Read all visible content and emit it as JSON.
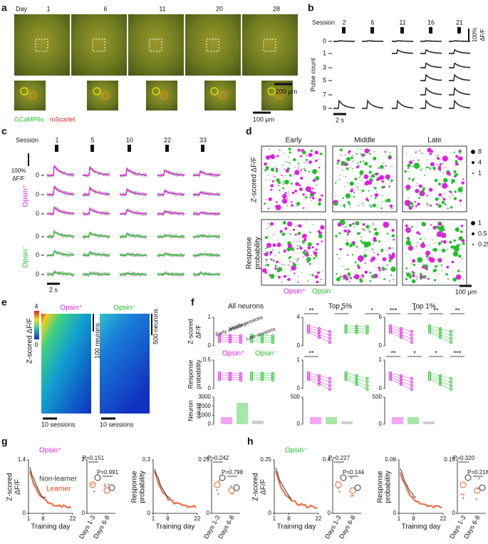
{
  "a": {
    "label": "a",
    "day_label": "Day",
    "days": [
      "1",
      "6",
      "11",
      "20",
      "28"
    ],
    "scale_large": "200 μm",
    "scale_small": "100 μm",
    "legend": [
      "GCaMP6s",
      "mScarlet"
    ]
  },
  "b": {
    "label": "b",
    "session_label": "Session",
    "sessions": [
      "2",
      "6",
      "11",
      "16",
      "21"
    ],
    "y_label": "Pulse count",
    "pulse_counts": [
      "0",
      "1",
      "3",
      "5",
      "7",
      "9"
    ],
    "scale_pct": "100%",
    "scale_unit": "ΔF/F",
    "time_scale": "2 s"
  },
  "c": {
    "label": "c",
    "session_label": "Session",
    "sessions": [
      "1",
      "5",
      "10",
      "22",
      "33"
    ],
    "scale_pct": "100%",
    "scale_unit": "ΔF/F",
    "row_ticks": [
      "0",
      "0",
      "0",
      "0",
      "0",
      "0"
    ],
    "group_labels": [
      "Opsin⁺",
      "Opsin⁻"
    ],
    "time_scale": "2 s"
  },
  "d": {
    "label": "d",
    "columns": [
      "Early",
      "Middle",
      "Late"
    ],
    "row_labels": [
      [
        "Z-scored ΔF/F"
      ],
      [
        "Response",
        "probability"
      ]
    ],
    "size_legends": [
      [
        "8",
        "4",
        "1"
      ],
      [
        "1",
        "0.5",
        "0.25"
      ]
    ],
    "legend": [
      "Opsin⁺",
      "Opsin⁻"
    ],
    "scale": "100 μm"
  },
  "e": {
    "label": "e",
    "colorbar_label": "Z-scored ΔF/F",
    "colorbar_ticks": [
      "4",
      "0"
    ],
    "titles": [
      "Opsin⁺",
      "Opsin⁻"
    ],
    "neuron_scales": [
      "100 neurons",
      "500 neurons"
    ],
    "session_scales": [
      "10 sessions",
      "10 sessions"
    ]
  },
  "f": {
    "label": "f",
    "y_labels": [
      [
        "Z-scored",
        "ΔF/F"
      ],
      [
        "Response",
        "probability"
      ],
      [
        "Neuron",
        "count"
      ]
    ],
    "session_legend": [
      "Early sessions",
      "Middle sessions",
      "Late sessions"
    ],
    "group_labels": [
      "Opsin⁺",
      "Opsin⁻"
    ],
    "columns": [
      {
        "title": "All neurons",
        "zscore_ticks": [
          "1",
          "0"
        ],
        "prob_ticks": [
          "0.5",
          "0"
        ],
        "count_ticks": [
          "3000",
          "2000",
          "1000",
          "0"
        ],
        "stars_z": [],
        "stars_p": []
      },
      {
        "title": "Top 5%",
        "zscore_ticks": [
          "4",
          "0"
        ],
        "prob_ticks": [
          "1",
          "0"
        ],
        "count_ticks": [
          "500",
          "0"
        ],
        "stars_z": [
          "**",
          "*",
          "*"
        ],
        "stars_p": [
          "**"
        ]
      },
      {
        "title": "Top 1%",
        "zscore_ticks": [
          "6",
          "0"
        ],
        "prob_ticks": [
          "1",
          "0"
        ],
        "count_ticks": [
          "500",
          "0"
        ],
        "stars_z": [
          "***",
          "*",
          "**",
          "**"
        ],
        "stars_p": [
          "**",
          "*",
          "*",
          "***"
        ]
      }
    ]
  },
  "g": {
    "label": "g",
    "group": "Opsin⁺",
    "x_ticks": [
      "1",
      "8",
      "22"
    ],
    "x_label": "Training day",
    "inset_labels": [
      "Days 1-3",
      "Days 6-8"
    ],
    "legend": [
      "Non-learner",
      "Learner"
    ],
    "plots": [
      {
        "y_label": [
          "Z-scored",
          "ΔF/F"
        ],
        "y_ticks": [
          "1.4",
          "0"
        ],
        "inset_ticks": [
          "2",
          "0"
        ],
        "p_values": [
          "P=0.151",
          "P=0.991"
        ]
      },
      {
        "y_label": [
          "Response",
          "probability"
        ],
        "y_ticks": [
          "0.3",
          "0"
        ],
        "inset_ticks": [
          "0.25",
          "0"
        ],
        "p_values": [
          "P=0.242",
          "P=0.798"
        ]
      }
    ]
  },
  "h": {
    "label": "h",
    "group": "Opsin⁻",
    "x_ticks": [
      "1",
      "8",
      "22"
    ],
    "x_label": "Training day",
    "inset_labels": [
      "Days 1-3",
      "Days 6-8"
    ],
    "plots": [
      {
        "y_label": [
          "Z-scored",
          "ΔF/F"
        ],
        "y_ticks": [
          "0.25",
          "0"
        ],
        "inset_ticks": [
          "0.4",
          "0"
        ],
        "p_values": [
          "P=0.227",
          "P=0.144"
        ]
      },
      {
        "y_label": [
          "Response",
          "probability"
        ],
        "y_ticks": [
          "0.08",
          "0"
        ],
        "inset_ticks": [
          "0.15",
          "0"
        ],
        "p_values": [
          "P=0.320",
          "P=0.218"
        ]
      }
    ]
  }
}
